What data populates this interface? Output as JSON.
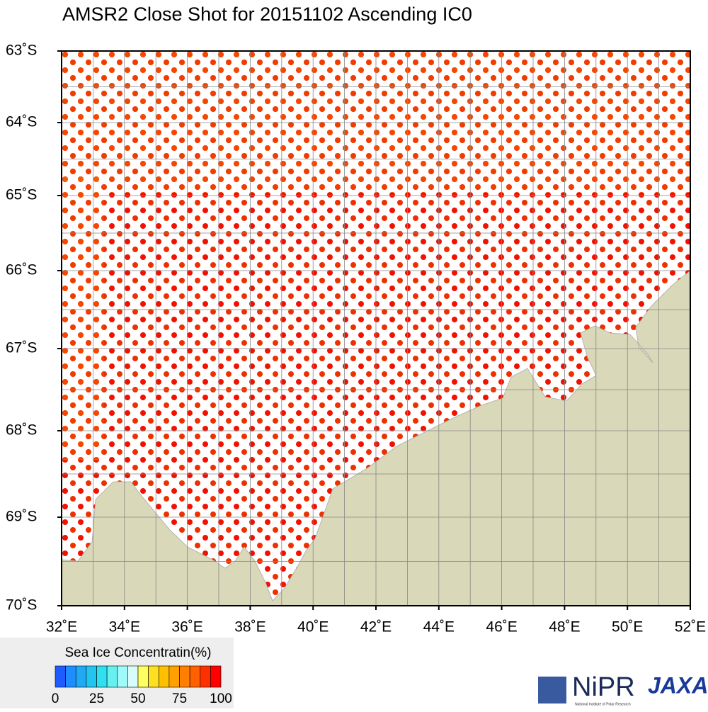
{
  "map": {
    "title": "AMSR2 Close Shot for 20151102 Ascending IC0",
    "lat_labels": [
      "63˚S",
      "64˚S",
      "65˚S",
      "66˚S",
      "67˚S",
      "68˚S",
      "69˚S",
      "70˚S"
    ],
    "lon_labels": [
      "32˚E",
      "34˚E",
      "36˚E",
      "38˚E",
      "40˚E",
      "42˚E",
      "44˚E",
      "46˚E",
      "48˚E",
      "50˚E",
      "52˚E"
    ],
    "colorbar": {
      "title": "Sea Ice Concentratin(%)",
      "labels": [
        "0",
        "25",
        "50",
        "75",
        "100"
      ],
      "colors": [
        "#1e5cff",
        "#1f8cff",
        "#20aaf5",
        "#22c4f0",
        "#2ee0f0",
        "#66f0f0",
        "#a0fafa",
        "#d8fcfc",
        "#ffff60",
        "#ffe020",
        "#ffc000",
        "#ffa000",
        "#ff8000",
        "#ff6000",
        "#ff3000",
        "#ff0000"
      ]
    },
    "logos": {
      "nipr": "NiPR",
      "nipr_sub": "National Institute of Polar Research",
      "jaxa": "JAXA"
    }
  }
}
